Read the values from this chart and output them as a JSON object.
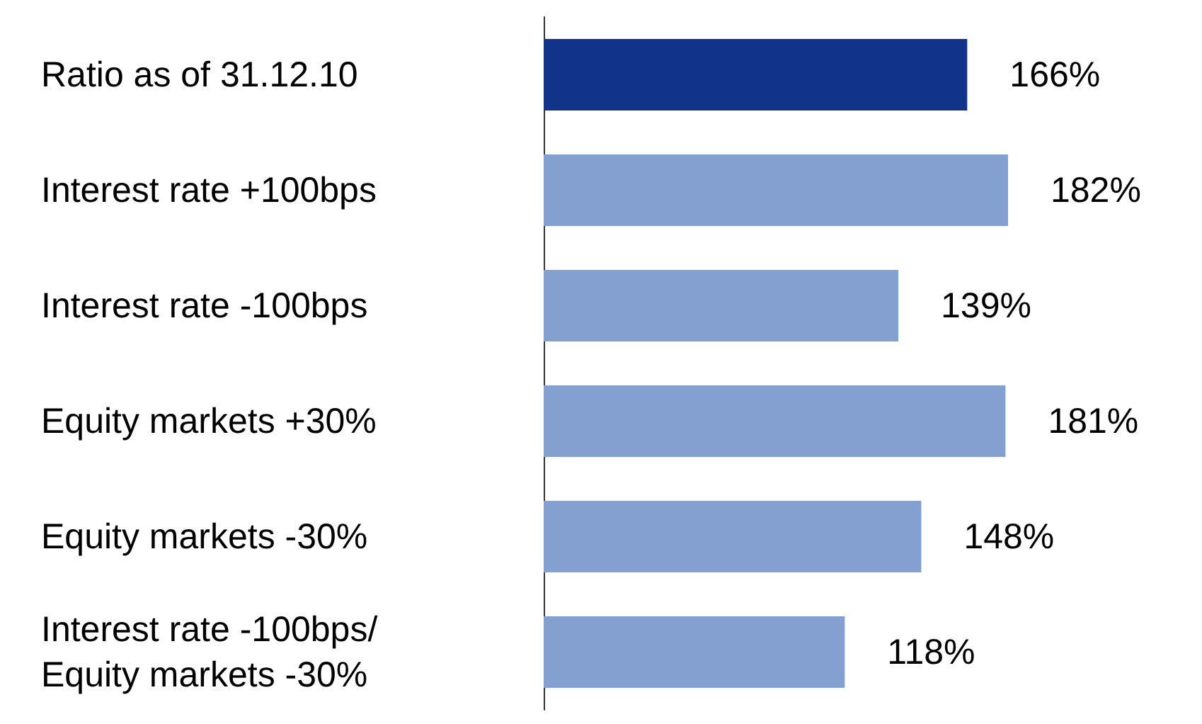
{
  "chart_data": {
    "type": "bar",
    "orientation": "horizontal",
    "categories": [
      "Ratio as of 31.12.10",
      "Interest rate +100bps",
      "Interest rate -100bps",
      "Equity markets +30%",
      "Equity markets -30%",
      "Interest rate -100bps/\nEquity markets -30%"
    ],
    "values": [
      166,
      182,
      139,
      181,
      148,
      118
    ],
    "colors": [
      "#12338a",
      "#84a0d0",
      "#84a0d0",
      "#84a0d0",
      "#84a0d0",
      "#84a0d0"
    ],
    "value_labels": [
      "166%",
      "182%",
      "139%",
      "181%",
      "148%",
      "118%"
    ]
  }
}
